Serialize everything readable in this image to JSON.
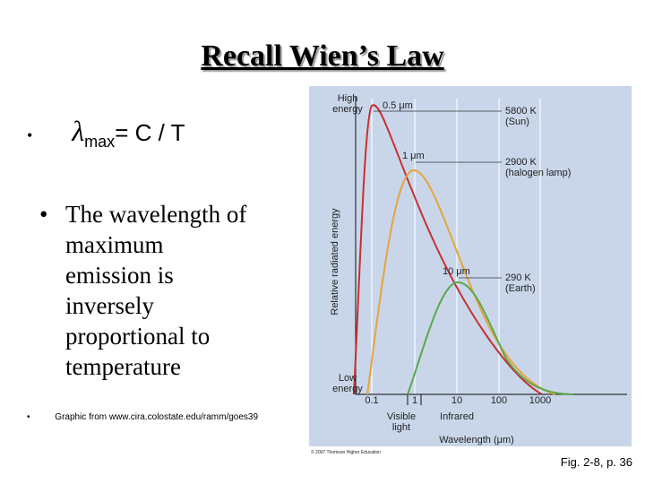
{
  "slide": {
    "title": "Recall Wien’s Law",
    "formula": {
      "symbol": "λ",
      "subscript": "max",
      "rhs": "= C / T"
    },
    "statement_lines": [
      "The wavelength of",
      "maximum",
      "emission is",
      "inversely",
      "proportional to",
      "temperature"
    ],
    "credit": "Graphic from www.cira.colostate.edu/ramm/goes39",
    "caption": "Fig. 2-8, p. 36"
  },
  "figure": {
    "top_label": [
      "High",
      "energy"
    ],
    "bottom_label": [
      "Low",
      "energy"
    ],
    "y_axis_label": "Relative radiated energy",
    "x_axis_label": "Wavelength (μm)",
    "x_tick_labels": [
      "0.1",
      "1",
      "10",
      "100",
      "1000"
    ],
    "bands": [
      [
        "Visible",
        "light"
      ],
      [
        "Infrared"
      ]
    ],
    "curves": [
      {
        "peak": "0.5 μm",
        "temperature": "5800 K",
        "source": "(Sun)"
      },
      {
        "peak": "1 μm",
        "temperature": "2900 K",
        "source": "(halogen lamp)"
      },
      {
        "peak": "10 μm",
        "temperature": "290 K",
        "source": "(Earth)"
      }
    ],
    "copyright": "© 2007 Thomson Higher Education"
  }
}
